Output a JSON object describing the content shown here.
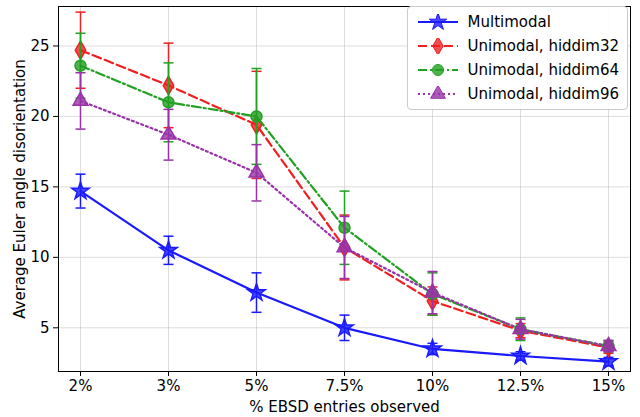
{
  "chart_data": {
    "type": "line",
    "x_label": "% EBSD entries observed",
    "y_label": "Average Euler angle disorientation",
    "categories": [
      "2%",
      "3%",
      "5%",
      "7.5%",
      "10%",
      "12.5%",
      "15%"
    ],
    "series": [
      {
        "name": "Multimodal",
        "color": "#1a1aff",
        "marker": "star",
        "line_style": "solid",
        "values": [
          14.7,
          10.5,
          7.5,
          5.0,
          3.5,
          3.0,
          2.6
        ],
        "errors": [
          1.2,
          1.0,
          1.4,
          0.9,
          0.4,
          0.3,
          0.3
        ]
      },
      {
        "name": "Unimodal, hiddim32",
        "color": "#f02020",
        "marker": "diamond",
        "line_style": "dashed",
        "values": [
          24.7,
          22.2,
          19.4,
          10.7,
          6.9,
          4.8,
          3.6
        ],
        "errors": [
          2.7,
          3.0,
          3.8,
          2.3,
          1.0,
          0.5,
          0.4
        ]
      },
      {
        "name": "Unimodal, hiddim64",
        "color": "#22a022",
        "marker": "circle",
        "line_style": "dashdot",
        "values": [
          23.6,
          21.0,
          20.0,
          12.1,
          7.4,
          4.9,
          3.7
        ],
        "errors": [
          2.3,
          2.8,
          3.4,
          2.6,
          1.5,
          0.8,
          0.4
        ]
      },
      {
        "name": "Unimodal, hiddim96",
        "color": "#9932a8",
        "marker": "triangle",
        "line_style": "dotted",
        "values": [
          21.1,
          18.7,
          16.0,
          10.7,
          7.5,
          4.9,
          3.7
        ],
        "errors": [
          2.0,
          1.8,
          2.0,
          2.2,
          1.5,
          0.7,
          0.4
        ]
      }
    ],
    "ylim": [
      1.9,
      27.8
    ],
    "yticks": [
      5,
      10,
      15,
      20,
      25
    ],
    "grid": true,
    "legend": "upper right"
  }
}
